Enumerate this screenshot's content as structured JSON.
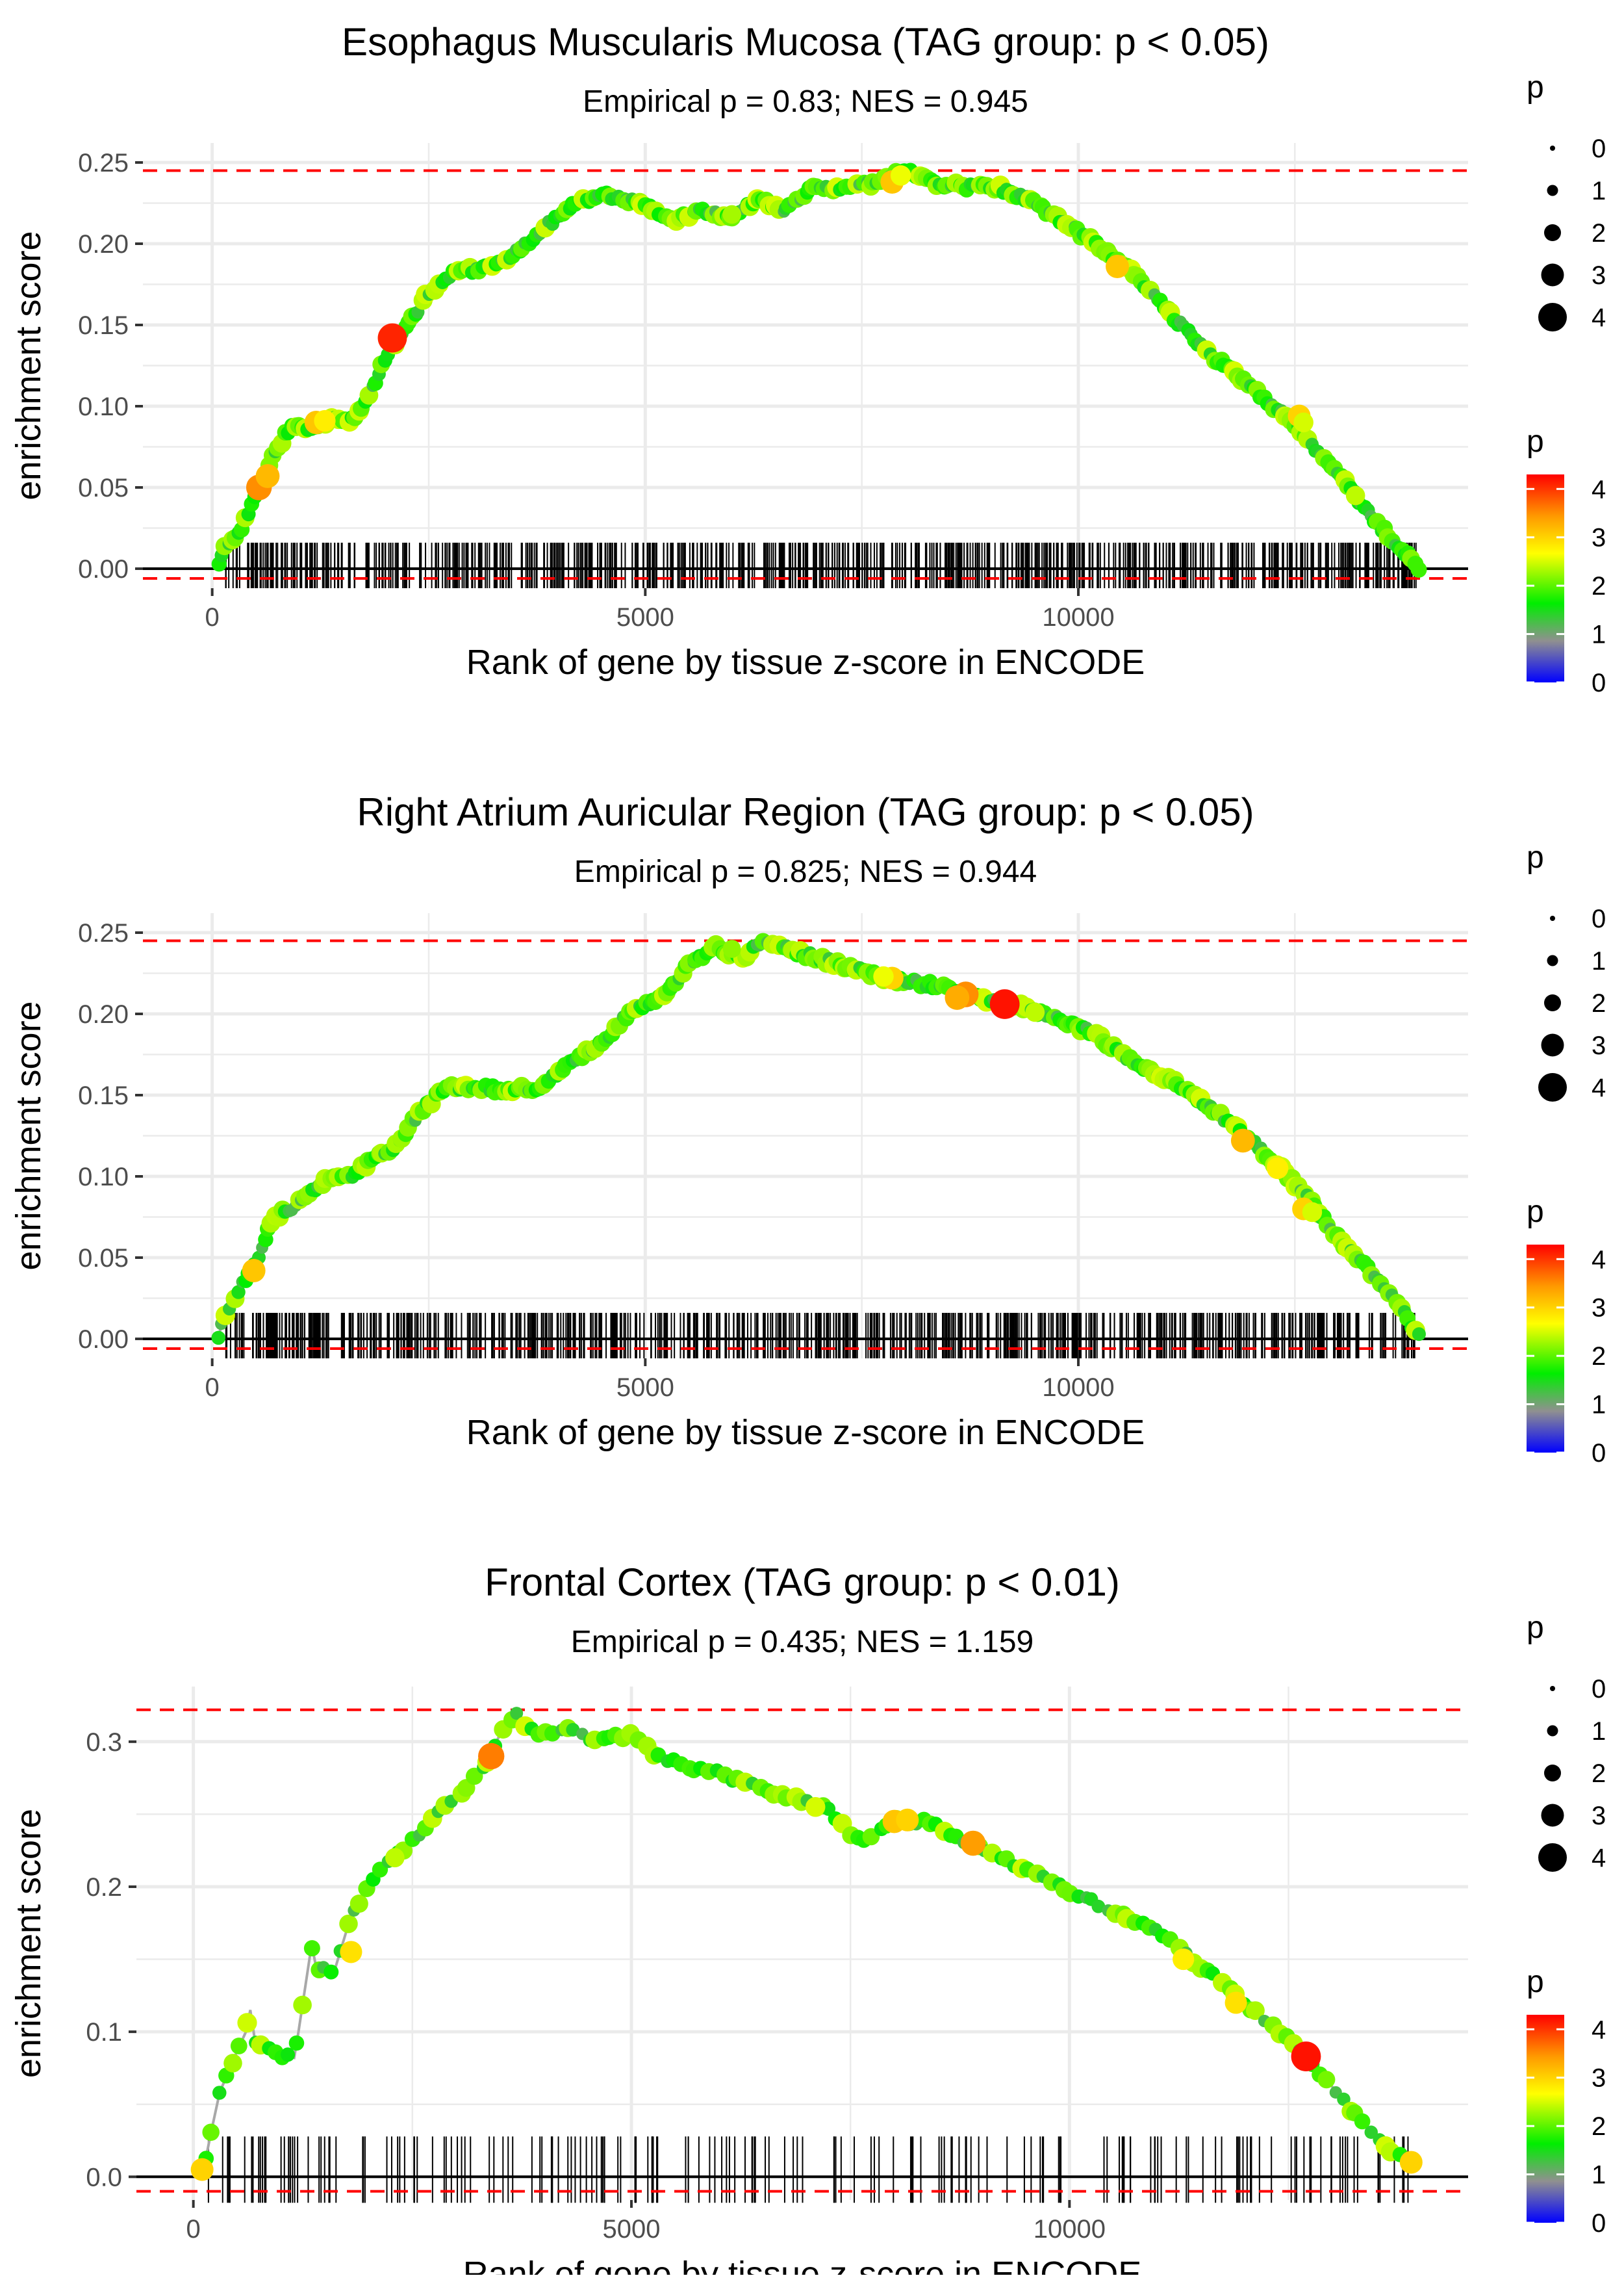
{
  "chart_data": [
    {
      "type": "line",
      "title": "Esophagus Muscularis Mucosa (TAG group: p < 0.05)",
      "subtitle": "Empirical p = 0.83; NES = 0.945",
      "xlabel": "Rank of gene by tissue z-score in ENCODE",
      "ylabel": "enrichment score",
      "xlim": [
        -800,
        14500
      ],
      "ylim": [
        -0.012,
        0.262
      ],
      "xticks": [
        0,
        5000,
        10000
      ],
      "xtick_labels": [
        "0",
        "5000",
        "10000"
      ],
      "yticks": [
        0,
        0.05,
        0.1,
        0.15,
        0.2,
        0.25
      ],
      "ytick_labels": [
        "0.00",
        "0.05",
        "0.10",
        "0.15",
        "0.20",
        "0.25"
      ],
      "max_es": 0.245,
      "min_es": -0.006,
      "n_genes": 14000,
      "n_hits": 720,
      "seed": 11,
      "curve": [
        [
          60,
          0.0
        ],
        [
          150,
          0.015
        ],
        [
          300,
          0.02
        ],
        [
          500,
          0.045
        ],
        [
          700,
          0.07
        ],
        [
          900,
          0.087
        ],
        [
          1200,
          0.088
        ],
        [
          1400,
          0.092
        ],
        [
          1600,
          0.091
        ],
        [
          1800,
          0.105
        ],
        [
          2000,
          0.13
        ],
        [
          2200,
          0.145
        ],
        [
          2500,
          0.17
        ],
        [
          2800,
          0.182
        ],
        [
          3100,
          0.185
        ],
        [
          3400,
          0.19
        ],
        [
          3800,
          0.208
        ],
        [
          4100,
          0.222
        ],
        [
          4500,
          0.23
        ],
        [
          5000,
          0.225
        ],
        [
          5300,
          0.214
        ],
        [
          5600,
          0.22
        ],
        [
          6000,
          0.216
        ],
        [
          6300,
          0.228
        ],
        [
          6600,
          0.22
        ],
        [
          6900,
          0.234
        ],
        [
          7300,
          0.235
        ],
        [
          7700,
          0.238
        ],
        [
          8000,
          0.245
        ],
        [
          8300,
          0.238
        ],
        [
          8700,
          0.235
        ],
        [
          9000,
          0.236
        ],
        [
          9400,
          0.228
        ],
        [
          9800,
          0.214
        ],
        [
          10200,
          0.2
        ],
        [
          10600,
          0.183
        ],
        [
          11000,
          0.16
        ],
        [
          11500,
          0.133
        ],
        [
          12000,
          0.112
        ],
        [
          12500,
          0.088
        ],
        [
          13000,
          0.058
        ],
        [
          13500,
          0.025
        ],
        [
          13950,
          0.0
        ]
      ],
      "highlight_points": [
        [
          2080,
          0.142,
          4.1
        ],
        [
          540,
          0.05,
          3.5
        ],
        [
          640,
          0.057,
          3.2
        ],
        [
          1200,
          0.09,
          3.1
        ],
        [
          1300,
          0.091,
          2.8
        ],
        [
          7850,
          0.238,
          3.1
        ],
        [
          7950,
          0.242,
          2.6
        ],
        [
          10450,
          0.186,
          3.1
        ],
        [
          12550,
          0.094,
          3.0
        ],
        [
          12600,
          0.09,
          2.5
        ],
        [
          13200,
          0.045,
          2.4
        ],
        [
          6000,
          0.218,
          2.3
        ]
      ],
      "legend_size": {
        "title": "p",
        "values": [
          "0",
          "1",
          "2",
          "3",
          "4"
        ]
      },
      "legend_color": {
        "title": "p",
        "ticks": [
          "0",
          "1",
          "2",
          "3",
          "4"
        ],
        "range": [
          0,
          4.3
        ]
      }
    },
    {
      "type": "line",
      "title": "Right Atrium Auricular Region (TAG group: p < 0.05)",
      "subtitle": "Empirical p = 0.825; NES = 0.944",
      "xlabel": "Rank of gene by tissue z-score in ENCODE",
      "ylabel": "enrichment score",
      "xlim": [
        -800,
        14500
      ],
      "ylim": [
        -0.012,
        0.262
      ],
      "xticks": [
        0,
        5000,
        10000
      ],
      "xtick_labels": [
        "0",
        "5000",
        "10000"
      ],
      "yticks": [
        0,
        0.05,
        0.1,
        0.15,
        0.2,
        0.25
      ],
      "ytick_labels": [
        "0.00",
        "0.05",
        "0.10",
        "0.15",
        "0.20",
        "0.25"
      ],
      "max_es": 0.245,
      "min_es": -0.006,
      "n_genes": 14000,
      "n_hits": 720,
      "seed": 23,
      "curve": [
        [
          60,
          0.0
        ],
        [
          150,
          0.015
        ],
        [
          300,
          0.03
        ],
        [
          500,
          0.045
        ],
        [
          700,
          0.075
        ],
        [
          900,
          0.08
        ],
        [
          1100,
          0.088
        ],
        [
          1300,
          0.097
        ],
        [
          1600,
          0.1
        ],
        [
          1800,
          0.108
        ],
        [
          2100,
          0.118
        ],
        [
          2400,
          0.14
        ],
        [
          2700,
          0.155
        ],
        [
          3000,
          0.155
        ],
        [
          3400,
          0.153
        ],
        [
          3800,
          0.155
        ],
        [
          4200,
          0.172
        ],
        [
          4500,
          0.182
        ],
        [
          4800,
          0.2
        ],
        [
          5200,
          0.21
        ],
        [
          5500,
          0.23
        ],
        [
          5800,
          0.242
        ],
        [
          6100,
          0.234
        ],
        [
          6400,
          0.245
        ],
        [
          6800,
          0.237
        ],
        [
          7300,
          0.23
        ],
        [
          7800,
          0.222
        ],
        [
          8300,
          0.218
        ],
        [
          8700,
          0.212
        ],
        [
          9200,
          0.206
        ],
        [
          9700,
          0.199
        ],
        [
          10200,
          0.187
        ],
        [
          10700,
          0.168
        ],
        [
          11200,
          0.155
        ],
        [
          11700,
          0.135
        ],
        [
          12200,
          0.112
        ],
        [
          12600,
          0.09
        ],
        [
          13000,
          0.062
        ],
        [
          13400,
          0.04
        ],
        [
          13700,
          0.02
        ],
        [
          13950,
          0.0
        ]
      ],
      "highlight_points": [
        [
          9150,
          0.206,
          4.2
        ],
        [
          8700,
          0.212,
          3.5
        ],
        [
          8600,
          0.21,
          3.3
        ],
        [
          7850,
          0.222,
          3.0
        ],
        [
          7750,
          0.223,
          2.6
        ],
        [
          480,
          0.042,
          3.1
        ],
        [
          11900,
          0.122,
          3.2
        ],
        [
          12300,
          0.105,
          2.8
        ],
        [
          12600,
          0.08,
          3.0
        ],
        [
          12700,
          0.078,
          2.5
        ],
        [
          9500,
          0.201,
          2.4
        ],
        [
          6000,
          0.24,
          2.2
        ]
      ],
      "legend_size": {
        "title": "p",
        "values": [
          "0",
          "1",
          "2",
          "3",
          "4"
        ]
      },
      "legend_color": {
        "title": "p",
        "ticks": [
          "0",
          "1",
          "2",
          "3",
          "4"
        ],
        "range": [
          0,
          4.3
        ]
      }
    },
    {
      "type": "line",
      "title": "Frontal Cortex (TAG group: p < 0.01)",
      "subtitle": "Empirical p = 0.435; NES = 1.159",
      "xlabel": "Rank of gene by tissue z-score in ENCODE",
      "ylabel": "enrichment score",
      "xlim": [
        -650,
        14550
      ],
      "ylim": [
        -0.016,
        0.338
      ],
      "xticks": [
        0,
        5000,
        10000
      ],
      "xtick_labels": [
        "0",
        "5000",
        "10000"
      ],
      "yticks": [
        0,
        0.1,
        0.2,
        0.3
      ],
      "ytick_labels": [
        "0.0",
        "0.1",
        "0.2",
        "0.3"
      ],
      "max_es": 0.322,
      "min_es": -0.01,
      "n_genes": 14000,
      "n_hits": 190,
      "seed": 37,
      "curve": [
        [
          100,
          0.0
        ],
        [
          200,
          0.03
        ],
        [
          300,
          0.058
        ],
        [
          450,
          0.08
        ],
        [
          600,
          0.1
        ],
        [
          650,
          0.115
        ],
        [
          700,
          0.095
        ],
        [
          900,
          0.085
        ],
        [
          1150,
          0.082
        ],
        [
          1200,
          0.1
        ],
        [
          1350,
          0.16
        ],
        [
          1400,
          0.145
        ],
        [
          1600,
          0.14
        ],
        [
          1800,
          0.18
        ],
        [
          2100,
          0.21
        ],
        [
          2400,
          0.225
        ],
        [
          2700,
          0.245
        ],
        [
          3000,
          0.262
        ],
        [
          3300,
          0.28
        ],
        [
          3500,
          0.305
        ],
        [
          3700,
          0.322
        ],
        [
          3800,
          0.31
        ],
        [
          4000,
          0.305
        ],
        [
          4200,
          0.31
        ],
        [
          4600,
          0.3
        ],
        [
          5000,
          0.305
        ],
        [
          5300,
          0.29
        ],
        [
          5600,
          0.283
        ],
        [
          6000,
          0.278
        ],
        [
          6400,
          0.27
        ],
        [
          6800,
          0.262
        ],
        [
          7200,
          0.255
        ],
        [
          7600,
          0.232
        ],
        [
          8000,
          0.245
        ],
        [
          8400,
          0.245
        ],
        [
          8800,
          0.232
        ],
        [
          9200,
          0.222
        ],
        [
          9600,
          0.208
        ],
        [
          10000,
          0.197
        ],
        [
          10400,
          0.185
        ],
        [
          10800,
          0.176
        ],
        [
          11200,
          0.16
        ],
        [
          11600,
          0.14
        ],
        [
          12000,
          0.12
        ],
        [
          12400,
          0.1
        ],
        [
          12700,
          0.082
        ],
        [
          13000,
          0.062
        ],
        [
          13300,
          0.04
        ],
        [
          13600,
          0.02
        ],
        [
          13900,
          0.01
        ]
      ],
      "highlight_points": [
        [
          12700,
          0.083,
          4.2
        ],
        [
          3400,
          0.29,
          3.6
        ],
        [
          8900,
          0.23,
          3.4
        ],
        [
          8000,
          0.245,
          3.1
        ],
        [
          8150,
          0.246,
          3.0
        ],
        [
          1800,
          0.155,
          2.9
        ],
        [
          13900,
          0.01,
          3.0
        ],
        [
          100,
          0.005,
          3.0
        ],
        [
          11900,
          0.12,
          2.9
        ],
        [
          11300,
          0.15,
          2.8
        ],
        [
          7100,
          0.255,
          2.5
        ],
        [
          2300,
          0.22,
          2.4
        ]
      ],
      "legend_size": {
        "title": "p",
        "values": [
          "0",
          "1",
          "2",
          "3",
          "4"
        ]
      },
      "legend_color": {
        "title": "p",
        "ticks": [
          "0",
          "1",
          "2",
          "3",
          "4"
        ],
        "range": [
          0,
          4.3
        ]
      }
    }
  ]
}
